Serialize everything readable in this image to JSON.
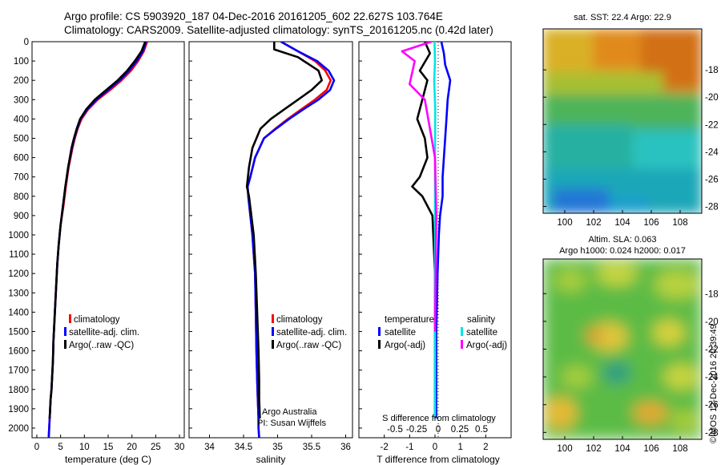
{
  "header": {
    "line1": "Argo profile: CS 5903920_187 04-Dec-2016 20161205_602 22.627S 103.764E",
    "line2": "Climatology: CARS2009. Satellite-adjusted climatology: synTS_20161205.nc (0.42d later)"
  },
  "credit": "©IMOS 12-Dec-2016 20:39:49",
  "colors": {
    "climatology": "#ff0000",
    "satellite": "#0000ff",
    "argo": "#000000",
    "sat_salinity": "#00e5e5",
    "argo_salinity": "#ff00ff"
  },
  "chart_data": [
    {
      "type": "line",
      "xlabel": "temperature (deg C)",
      "ylabel": "",
      "xlim": [
        -1,
        31
      ],
      "ylim": [
        2050,
        0
      ],
      "xticks": [
        0,
        5,
        10,
        15,
        20,
        25,
        30
      ],
      "yticks": [
        0,
        100,
        200,
        300,
        400,
        500,
        600,
        700,
        800,
        900,
        1000,
        1100,
        1200,
        1300,
        1400,
        1500,
        1600,
        1700,
        1800,
        1900,
        2000
      ],
      "legend": [
        "climatology",
        "satellite-adj. clim.",
        "Argo(..raw -QC)"
      ],
      "legend_position": "lower-center",
      "series": [
        {
          "name": "climatology",
          "color": "#ff0000",
          "x": [
            23.2,
            22.5,
            21.3,
            19.8,
            17.8,
            15.4,
            12.8,
            10.8,
            9.4,
            8.6,
            8.0,
            7.5,
            6.7,
            6.1,
            5.6,
            5.0,
            4.6,
            4.3,
            4.1,
            3.9,
            3.7,
            3.5,
            3.4,
            3.2,
            3.1,
            2.9,
            2.8,
            2.7,
            2.6,
            2.55,
            2.5
          ],
          "y": [
            0,
            50,
            100,
            150,
            200,
            250,
            300,
            350,
            400,
            450,
            500,
            550,
            650,
            750,
            850,
            950,
            1050,
            1150,
            1250,
            1350,
            1450,
            1550,
            1650,
            1750,
            1800,
            1850,
            1900,
            1950,
            2000,
            2025,
            2050
          ]
        },
        {
          "name": "satellite-adj. clim.",
          "color": "#0000ff",
          "x": [
            23.0,
            22.3,
            21.0,
            19.4,
            17.4,
            15.0,
            12.5,
            10.6,
            9.2,
            8.5,
            7.9,
            7.4,
            6.6,
            6.0,
            5.5,
            5.0,
            4.6,
            4.3,
            4.1,
            3.9,
            3.7,
            3.5,
            3.4,
            3.2,
            3.1,
            2.9,
            2.8,
            2.7,
            2.6,
            2.55,
            2.5
          ],
          "y": [
            0,
            50,
            100,
            150,
            200,
            250,
            300,
            350,
            400,
            450,
            500,
            550,
            650,
            750,
            850,
            950,
            1050,
            1150,
            1250,
            1350,
            1450,
            1550,
            1650,
            1750,
            1800,
            1850,
            1900,
            1950,
            2000,
            2025,
            2050
          ]
        },
        {
          "name": "Argo(..raw -QC)",
          "color": "#000000",
          "x": [
            22.8,
            22.0,
            20.6,
            19.0,
            17.0,
            14.6,
            12.2,
            10.4,
            9.1,
            8.4,
            7.8,
            7.3,
            6.6,
            6.0,
            5.5,
            5.0,
            4.6,
            4.3,
            4.1,
            3.9,
            3.7,
            3.5,
            3.4,
            3.2,
            3.1,
            2.9,
            2.8,
            2.7
          ],
          "y": [
            0,
            50,
            100,
            150,
            200,
            250,
            300,
            350,
            400,
            450,
            500,
            550,
            650,
            750,
            850,
            950,
            1050,
            1150,
            1250,
            1350,
            1450,
            1550,
            1650,
            1750,
            1800,
            1850,
            1900,
            1950
          ]
        }
      ]
    },
    {
      "type": "line",
      "xlabel": "salinity",
      "xlim": [
        33.7,
        36.1
      ],
      "ylim": [
        2050,
        0
      ],
      "xticks": [
        34,
        34.5,
        35,
        35.5,
        36
      ],
      "legend": [
        "climatology",
        "satellite-adj. clim.",
        "Argo(..raw -QC)"
      ],
      "legend_position": "lower-center",
      "annotation": [
        "Argo Australia",
        "PI: Susan Wijffels"
      ],
      "series": [
        {
          "name": "climatology",
          "color": "#ff0000",
          "x": [
            35.05,
            35.3,
            35.55,
            35.7,
            35.78,
            35.72,
            35.55,
            35.35,
            35.15,
            34.97,
            34.8,
            34.67,
            34.6,
            34.56,
            34.57,
            34.6,
            34.63,
            34.65,
            34.67,
            34.68,
            34.69,
            34.7,
            34.71,
            34.72,
            34.72,
            34.73
          ],
          "y": [
            0,
            50,
            100,
            150,
            200,
            250,
            300,
            350,
            400,
            450,
            500,
            600,
            700,
            750,
            800,
            900,
            1000,
            1100,
            1200,
            1400,
            1600,
            1750,
            1850,
            1950,
            2000,
            2050
          ]
        },
        {
          "name": "satellite-adj. clim.",
          "color": "#0000ff",
          "x": [
            35.05,
            35.3,
            35.58,
            35.75,
            35.83,
            35.77,
            35.6,
            35.38,
            35.17,
            34.98,
            34.8,
            34.67,
            34.6,
            34.56,
            34.57,
            34.6,
            34.63,
            34.65,
            34.67,
            34.68,
            34.69,
            34.7,
            34.71,
            34.72,
            34.72,
            34.73
          ],
          "y": [
            0,
            50,
            100,
            150,
            200,
            250,
            300,
            350,
            400,
            450,
            500,
            600,
            700,
            750,
            800,
            900,
            1000,
            1100,
            1200,
            1400,
            1600,
            1750,
            1850,
            1950,
            2000,
            2050
          ]
        },
        {
          "name": "Argo(..raw -QC)",
          "color": "#000000",
          "x": [
            34.95,
            34.95,
            35.3,
            35.6,
            35.65,
            35.5,
            35.3,
            35.1,
            34.9,
            34.75,
            34.63,
            34.58,
            34.55,
            34.58,
            34.65,
            34.68,
            34.7,
            34.72,
            34.73,
            34.73,
            34.74
          ],
          "y": [
            0,
            40,
            80,
            150,
            200,
            250,
            300,
            350,
            400,
            450,
            550,
            650,
            750,
            800,
            1000,
            1200,
            1400,
            1600,
            1750,
            1850,
            1950
          ]
        }
      ]
    },
    {
      "type": "line",
      "xlabel": "T difference from climatology",
      "xlabel_top": "S difference from climatology",
      "xlim": [
        -3,
        3
      ],
      "xticks": [
        -2,
        -1,
        0,
        1,
        2
      ],
      "xticks_secondary": [
        -0.5,
        -0.25,
        0,
        0.25,
        0.5
      ],
      "xticks_secondary_labels": [
        "-0.5",
        "-0.25",
        "0",
        "0.25",
        "0.5"
      ],
      "ylim": [
        2050,
        0
      ],
      "legend_groups": [
        {
          "title": "temperature",
          "items": [
            "satellite",
            "Argo(-adj)"
          ]
        },
        {
          "title": "salinity",
          "items": [
            "satellite",
            "Argo(-adj)"
          ]
        }
      ],
      "series": [
        {
          "name": "temperature satellite",
          "color": "#0000ff",
          "x": [
            0.25,
            0.35,
            0.4,
            0.6,
            0.5,
            0.45,
            0.4,
            0.35,
            0.3,
            0.3,
            0.25,
            0.2,
            0.15,
            0.1,
            0.05,
            0.05
          ],
          "y": [
            0,
            60,
            120,
            200,
            300,
            400,
            500,
            600,
            700,
            800,
            850,
            900,
            1000,
            1200,
            1500,
            1950
          ]
        },
        {
          "name": "temperature Argo(-adj)",
          "color": "#000000",
          "x": [
            -0.4,
            -0.2,
            -0.6,
            -0.3,
            -0.5,
            -0.7,
            -0.4,
            -0.3,
            -0.6,
            -0.9,
            -0.5,
            -0.3,
            -0.1,
            0.0,
            0.0
          ],
          "y": [
            0,
            60,
            150,
            200,
            300,
            400,
            500,
            600,
            700,
            750,
            800,
            850,
            900,
            1200,
            1950
          ]
        },
        {
          "name": "salinity satellite",
          "color": "#00e5e5",
          "x": [
            -0.02,
            0.0,
            -0.03,
            0.01,
            0.0,
            0.0,
            0.0,
            0.0
          ],
          "y": [
            0,
            100,
            200,
            350,
            600,
            900,
            1400,
            1950
          ]
        },
        {
          "name": "salinity Argo(-adj)",
          "color": "#ff00ff",
          "x": [
            -0.15,
            -1.3,
            -0.8,
            -1.0,
            -0.4,
            0.0,
            0.05,
            0.0
          ],
          "y": [
            0,
            50,
            100,
            220,
            300,
            600,
            900,
            1500
          ]
        }
      ]
    },
    {
      "type": "heatmap",
      "title": "sat. SST: 22.4  Argo: 22.9",
      "xlim": [
        98.5,
        109.5
      ],
      "ylim": [
        -28.5,
        -15
      ],
      "xticks": [
        100,
        102,
        104,
        106,
        108
      ],
      "yticks": [
        -18,
        -20,
        -22,
        -24,
        -26,
        -28
      ],
      "gradient": "orange (north-east, warm) to green and blue (south-west, cool)"
    },
    {
      "type": "heatmap",
      "title": "Altim. SLA: 0.063",
      "subtitle": "Argo h1000: 0.024  h2000: 0.017",
      "xlim": [
        98.5,
        109.5
      ],
      "ylim": [
        -28.5,
        -15.5
      ],
      "xticks": [
        100,
        102,
        104,
        106,
        108
      ],
      "yticks": [
        -18,
        -20,
        -22,
        -24,
        -26,
        -28
      ],
      "gradient": "green field with yellow and orange eddies and teal lows"
    }
  ]
}
